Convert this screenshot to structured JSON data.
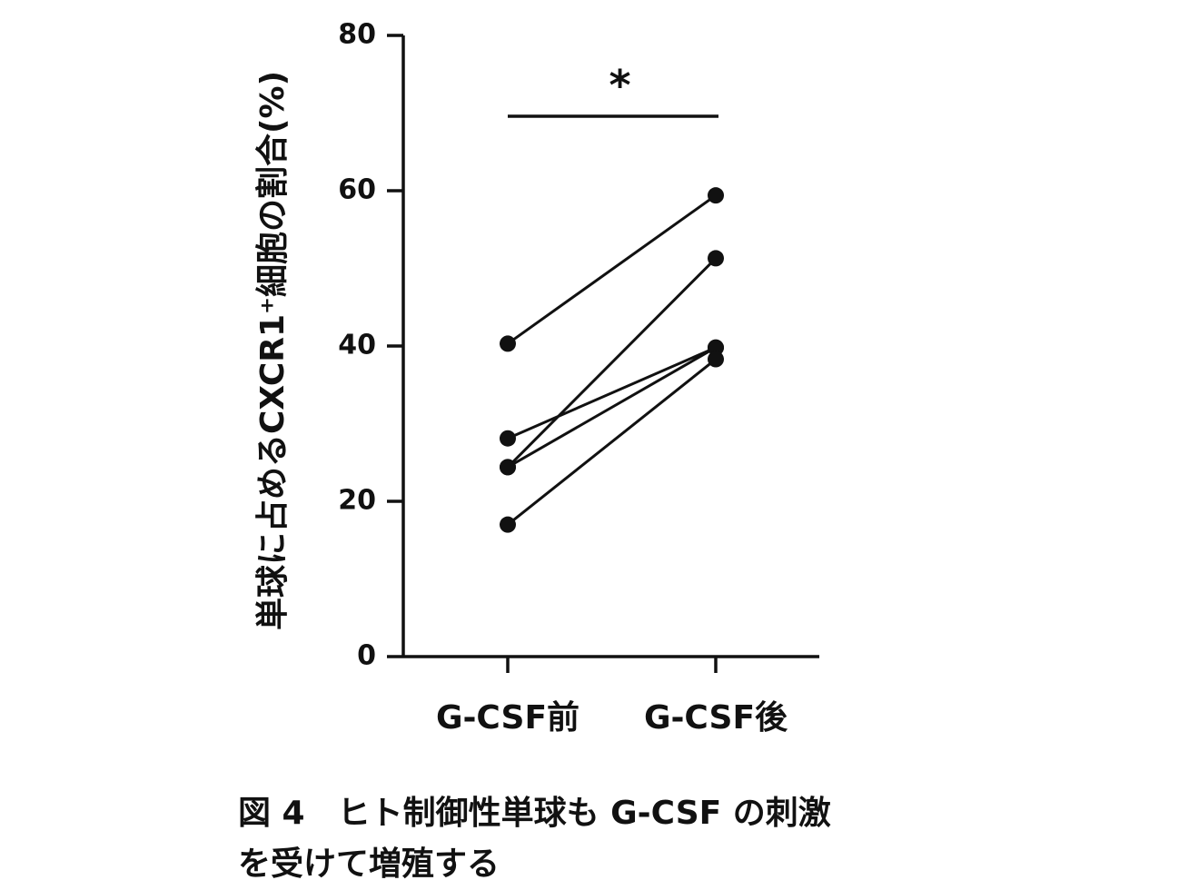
{
  "chart_data": {
    "type": "line",
    "ylabel": "単球に占めるCXCR1⁺細胞の割合(%)",
    "categories": [
      "G-CSF前",
      "G-CSF後"
    ],
    "ylim": [
      0,
      80
    ],
    "yticks": [
      "0",
      "20",
      "40",
      "60",
      "80"
    ],
    "series": [
      {
        "values": [
          40.3,
          59.4
        ]
      },
      {
        "values": [
          24.4,
          51.3
        ]
      },
      {
        "values": [
          28.1,
          39.8
        ]
      },
      {
        "values": [
          24.4,
          39.8
        ]
      },
      {
        "values": [
          17.0,
          38.3
        ]
      }
    ],
    "significance": {
      "label": "*",
      "between": [
        "G-CSF前",
        "G-CSF後"
      ]
    },
    "grid": false,
    "marker_color": "#111111"
  },
  "caption": {
    "line1": "図 4　ヒト制御性単球も G-CSF の刺激",
    "line2": "を受けて増殖する"
  }
}
